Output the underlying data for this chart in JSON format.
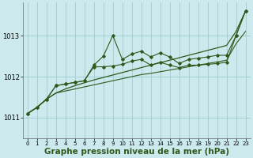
{
  "background_color": "#cce9ed",
  "grid_color": "#9dcdd4",
  "line_color": "#2d5a1b",
  "xlabel": "Graphe pression niveau de la mer (hPa)",
  "xlabel_fontsize": 7.5,
  "xlim": [
    -0.5,
    23.5
  ],
  "ylim": [
    1010.5,
    1013.8
  ],
  "yticks": [
    1011,
    1012,
    1013
  ],
  "xticks": [
    0,
    1,
    2,
    3,
    4,
    5,
    6,
    7,
    8,
    9,
    10,
    11,
    12,
    13,
    14,
    15,
    16,
    17,
    18,
    19,
    20,
    21,
    22,
    23
  ],
  "trend_line": [
    1011.1,
    1011.25,
    1011.45,
    1011.6,
    1011.7,
    1011.78,
    1011.85,
    1011.92,
    1011.98,
    1012.04,
    1012.1,
    1012.16,
    1012.22,
    1012.28,
    1012.34,
    1012.4,
    1012.46,
    1012.52,
    1012.58,
    1012.64,
    1012.7,
    1012.76,
    1013.1,
    1013.6
  ],
  "jagged1": [
    1011.1,
    1011.25,
    1011.45,
    1011.78,
    1011.82,
    1011.86,
    1011.9,
    1012.28,
    1012.5,
    1013.0,
    1012.42,
    1012.55,
    1012.62,
    1012.48,
    1012.58,
    1012.48,
    1012.32,
    1012.42,
    1012.45,
    1012.48,
    1012.52,
    1012.52,
    1013.0,
    1013.6
  ],
  "jagged2": [
    1011.1,
    1011.25,
    1011.45,
    1011.78,
    1011.82,
    1011.86,
    1011.9,
    1012.24,
    1012.24,
    1012.26,
    1012.3,
    1012.38,
    1012.42,
    1012.28,
    1012.35,
    1012.28,
    1012.22,
    1012.28,
    1012.28,
    1012.3,
    1012.32,
    1012.35,
    1013.0,
    1013.6
  ],
  "smooth2": [
    1011.1,
    1011.25,
    1011.45,
    1011.6,
    1011.65,
    1011.7,
    1011.75,
    1011.8,
    1011.85,
    1011.9,
    1011.95,
    1012.0,
    1012.05,
    1012.08,
    1012.12,
    1012.16,
    1012.2,
    1012.24,
    1012.28,
    1012.32,
    1012.36,
    1012.4,
    1012.8,
    1013.1
  ]
}
